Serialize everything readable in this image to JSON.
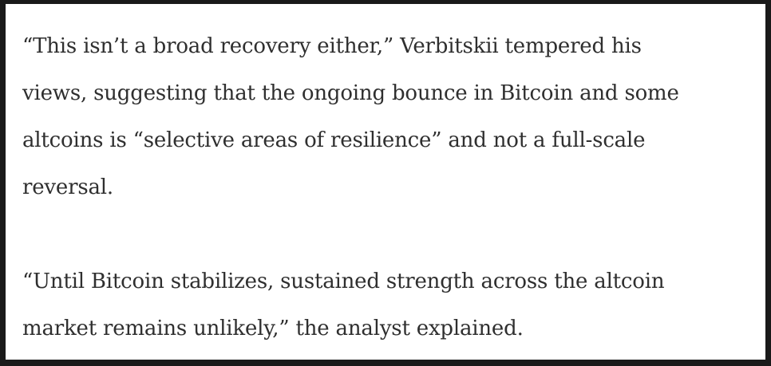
{
  "quote_block": {
    "colors": {
      "text": "#2f2f2f",
      "border": "#1a1a1a",
      "background": "#ffffff"
    },
    "paragraphs": [
      {
        "lines": [
          "“This isn’t a broad recovery either,” Verbitskii tempered his",
          "views, suggesting that the ongoing bounce in Bitcoin and some",
          "altcoins is “selective areas of resilience” and not a full-scale",
          "reversal."
        ]
      },
      {
        "lines": [
          "“Until Bitcoin stabilizes, sustained strength across the altcoin",
          "market remains unlikely,” the analyst explained."
        ]
      }
    ]
  }
}
